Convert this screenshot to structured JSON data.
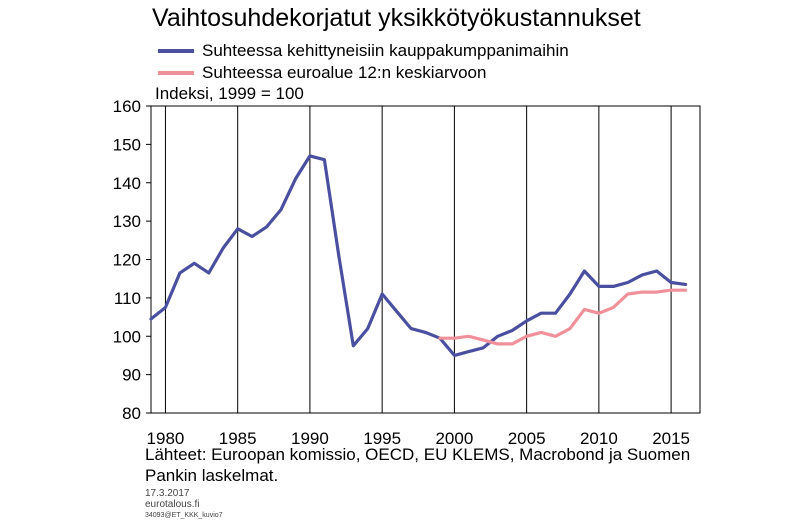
{
  "title": "Vaihtosuhdekorjatut yksikkötyökustannukset",
  "unit_label": "Indeksi, 1999 = 100",
  "source_text": "Lähteet: Euroopan komissio, OECD, EU KLEMS, Macrobond ja Suomen Pankin laskelmat.",
  "footer": {
    "date": "17.3.2017",
    "site": "eurotalous.fi",
    "code": "34093@ET_KKK_kuvio7"
  },
  "chart_data": {
    "type": "line",
    "title": "Vaihtosuhdekorjatut yksikkötyökustannukset",
    "ylabel": "Indeksi, 1999 = 100",
    "ylim": [
      80,
      160
    ],
    "yticks": [
      80,
      90,
      100,
      110,
      120,
      130,
      140,
      150,
      160
    ],
    "xlim": [
      1979,
      2017
    ],
    "xticks": [
      1980,
      1985,
      1990,
      1995,
      2000,
      2005,
      2010,
      2015
    ],
    "grid": "vertical",
    "legend_position": "top-left",
    "series": [
      {
        "name": "Suhteessa kehittyneisiin kauppakumppanimaihin",
        "color": "#4a4fa0",
        "x": [
          1979,
          1980,
          1981,
          1982,
          1983,
          1984,
          1985,
          1986,
          1987,
          1988,
          1989,
          1990,
          1991,
          1992,
          1993,
          1994,
          1995,
          1996,
          1997,
          1998,
          1999,
          2000,
          2001,
          2002,
          2003,
          2004,
          2005,
          2006,
          2007,
          2008,
          2009,
          2010,
          2011,
          2012,
          2013,
          2014,
          2015,
          2016
        ],
        "values": [
          104.5,
          107.5,
          116.5,
          119,
          116.5,
          123,
          128,
          126,
          128.5,
          133,
          141,
          147,
          146,
          121,
          97.5,
          102,
          111,
          106.5,
          102,
          101,
          99.5,
          95,
          96,
          97,
          100,
          101.5,
          104,
          106,
          106,
          111,
          117,
          113,
          113,
          114,
          116,
          117,
          114,
          113.5
        ]
      },
      {
        "name": "Suhteessa euroalue 12:n keskiarvoon",
        "color": "#f0909a",
        "x": [
          1999,
          2000,
          2001,
          2002,
          2003,
          2004,
          2005,
          2006,
          2007,
          2008,
          2009,
          2010,
          2011,
          2012,
          2013,
          2014,
          2015,
          2016
        ],
        "values": [
          99.5,
          99.5,
          100,
          99,
          98,
          98,
          100,
          101,
          100,
          102,
          107,
          106,
          107.5,
          111,
          111.5,
          111.5,
          112,
          112
        ]
      }
    ]
  }
}
